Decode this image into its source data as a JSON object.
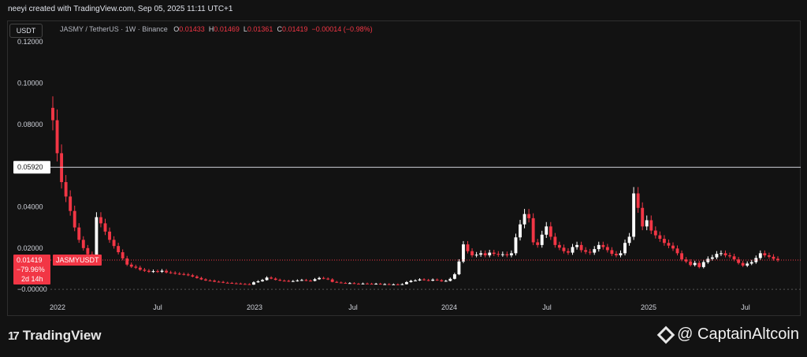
{
  "header": {
    "credit": "neeyi created with TradingView.com, Sep 05, 2025 11:11 UTC+1"
  },
  "unit_button": "USDT",
  "legend": {
    "symbol": "JASMY / TetherUS · 1W · Binance",
    "o_label": "O",
    "o": "0.01433",
    "h_label": "H",
    "h": "0.01469",
    "l_label": "L",
    "l": "0.01361",
    "c_label": "C",
    "c": "0.01419",
    "change": "−0.00014 (−0.98%)"
  },
  "price_tag": {
    "price": "0.01419",
    "pct": "−79.96%",
    "time": "2d 14h",
    "symbol": "JASMYUSDT"
  },
  "line_label": "0.05920",
  "branding": {
    "logo_text": "TradingView",
    "watermark": "@ CaptainAltcoin"
  },
  "colors": {
    "up": "#ffffff",
    "down": "#f23645",
    "bg": "#121212"
  },
  "chart_data": {
    "type": "candlestick",
    "interval": "1W",
    "y_ticks": [
      "0.12000",
      "0.10000",
      "0.08000",
      "0.04000",
      "0.02000",
      "−0.00000"
    ],
    "x_ticks": [
      "2022",
      "Jul",
      "2023",
      "Jul",
      "2024",
      "Jul",
      "2025",
      "Jul"
    ],
    "ylim": [
      -0.003,
      0.125
    ],
    "horizontal_lines": [
      0.0592,
      0.01419,
      0.0
    ],
    "series_close": [
      0.082,
      0.066,
      0.052,
      0.045,
      0.038,
      0.03,
      0.024,
      0.02,
      0.017,
      0.016,
      0.035,
      0.032,
      0.028,
      0.024,
      0.021,
      0.018,
      0.015,
      0.012,
      0.011,
      0.0105,
      0.0095,
      0.009,
      0.0085,
      0.0088,
      0.0085,
      0.009,
      0.0082,
      0.008,
      0.0076,
      0.0074,
      0.0072,
      0.0068,
      0.0062,
      0.0055,
      0.0048,
      0.0043,
      0.0042,
      0.0037,
      0.0036,
      0.0032,
      0.0031,
      0.0029,
      0.0028,
      0.0026,
      0.0025,
      0.0023,
      0.0034,
      0.0039,
      0.0045,
      0.0057,
      0.0052,
      0.0046,
      0.0042,
      0.0041,
      0.0038,
      0.004,
      0.0043,
      0.0045,
      0.0042,
      0.0041,
      0.0049,
      0.0055,
      0.0052,
      0.0048,
      0.0036,
      0.0033,
      0.0031,
      0.0029,
      0.003,
      0.0027,
      0.0026,
      0.0028,
      0.0027,
      0.0025,
      0.0027,
      0.0024,
      0.0025,
      0.0023,
      0.0024,
      0.0022,
      0.0025,
      0.0035,
      0.0041,
      0.0043,
      0.0048,
      0.0045,
      0.0042,
      0.0047,
      0.0044,
      0.0039,
      0.0041,
      0.0051,
      0.0073,
      0.0135,
      0.0218,
      0.0185,
      0.0165,
      0.0168,
      0.0175,
      0.0165,
      0.0178,
      0.0172,
      0.0168,
      0.017,
      0.0165,
      0.0175,
      0.0252,
      0.0315,
      0.0365,
      0.0345,
      0.0228,
      0.0215,
      0.0265,
      0.0305,
      0.0255,
      0.0215,
      0.0202,
      0.0185,
      0.0178,
      0.0205,
      0.0215,
      0.019,
      0.0182,
      0.0178,
      0.0195,
      0.0215,
      0.0205,
      0.019,
      0.0172,
      0.0165,
      0.0175,
      0.0225,
      0.0255,
      0.0465,
      0.0395,
      0.0305,
      0.0335,
      0.0285,
      0.0262,
      0.0245,
      0.0225,
      0.0212,
      0.0198,
      0.0175,
      0.0145,
      0.0135,
      0.0118,
      0.0128,
      0.0108,
      0.0132,
      0.0148,
      0.0155,
      0.0172,
      0.0175,
      0.0165,
      0.016,
      0.0145,
      0.0128,
      0.0115,
      0.0125,
      0.0132,
      0.0152,
      0.0175,
      0.0165,
      0.0158,
      0.0148,
      0.0142
    ]
  }
}
